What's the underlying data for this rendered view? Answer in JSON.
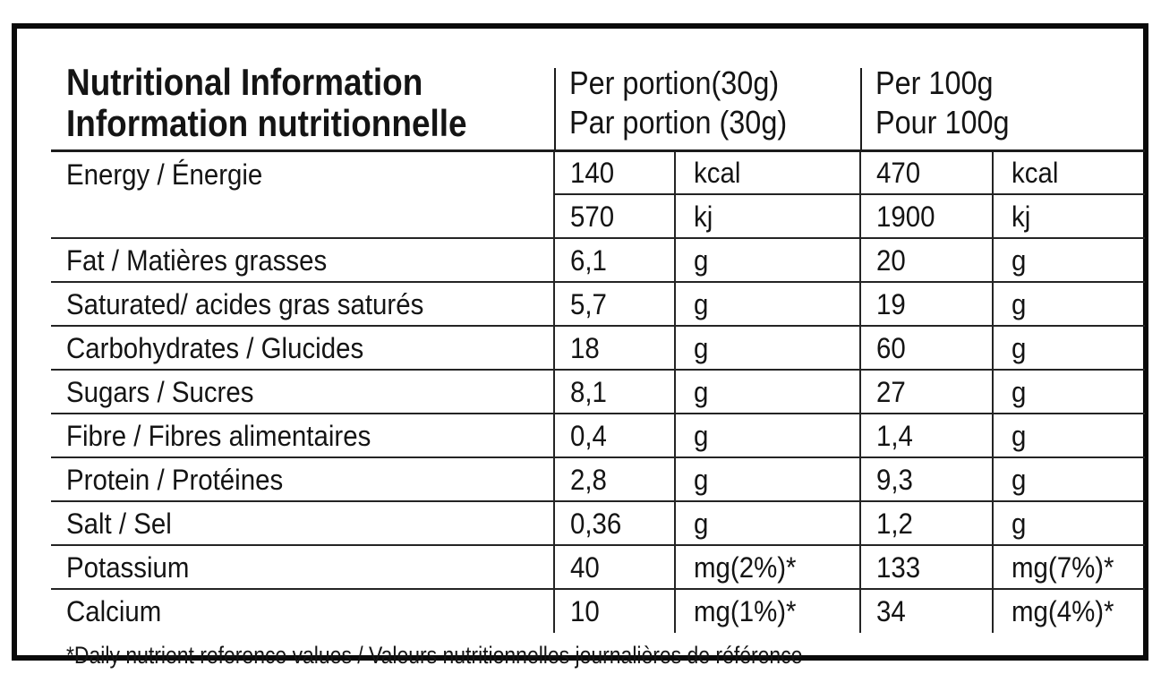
{
  "document": {
    "title": {
      "en": "Nutritional Information",
      "fr": "Information nutritionnelle"
    },
    "columns": {
      "per_portion": {
        "en": "Per portion(30g)",
        "fr": "Par portion (30g)"
      },
      "per_100g": {
        "en": "Per 100g",
        "fr": "Pour 100g"
      }
    },
    "energy": {
      "label": "Energy / Énergie",
      "kcal_row": {
        "portion_value": "140",
        "portion_unit": "kcal",
        "per100_value": "470",
        "per100_unit": "kcal"
      },
      "kj_row": {
        "portion_value": "570",
        "portion_unit": "kj",
        "per100_value": "1900",
        "per100_unit": "kj"
      }
    },
    "nutrients": [
      {
        "label": "Fat / Matières grasses",
        "portion_value": "6,1",
        "portion_unit": "g",
        "per100_value": "20",
        "per100_unit": "g"
      },
      {
        "label": "Saturated/ acides gras saturés",
        "portion_value": "5,7",
        "portion_unit": "g",
        "per100_value": "19",
        "per100_unit": "g"
      },
      {
        "label": "Carbohydrates / Glucides",
        "portion_value": "18",
        "portion_unit": "g",
        "per100_value": "60",
        "per100_unit": "g"
      },
      {
        "label": "Sugars / Sucres",
        "portion_value": "8,1",
        "portion_unit": "g",
        "per100_value": "27",
        "per100_unit": "g"
      },
      {
        "label": "Fibre / Fibres alimentaires",
        "portion_value": "0,4",
        "portion_unit": "g",
        "per100_value": "1,4",
        "per100_unit": "g"
      },
      {
        "label": "Protein / Protéines",
        "portion_value": "2,8",
        "portion_unit": "g",
        "per100_value": "9,3",
        "per100_unit": "g"
      },
      {
        "label": "Salt / Sel",
        "portion_value": "0,36",
        "portion_unit": "g",
        "per100_value": "1,2",
        "per100_unit": "g"
      },
      {
        "label": "Potassium",
        "portion_value": "40",
        "portion_unit": "mg(2%)*",
        "per100_value": "133",
        "per100_unit": "mg(7%)*"
      },
      {
        "label": "Calcium",
        "portion_value": "10",
        "portion_unit": "mg(1%)*",
        "per100_value": "34",
        "per100_unit": "mg(4%)*"
      }
    ],
    "footnote": "*Daily nutrient reference values / Valeurs nutritionnelles journalières de référence",
    "colors": {
      "background": "#ffffff",
      "text": "#141414",
      "border": "#0a0a0a"
    }
  }
}
